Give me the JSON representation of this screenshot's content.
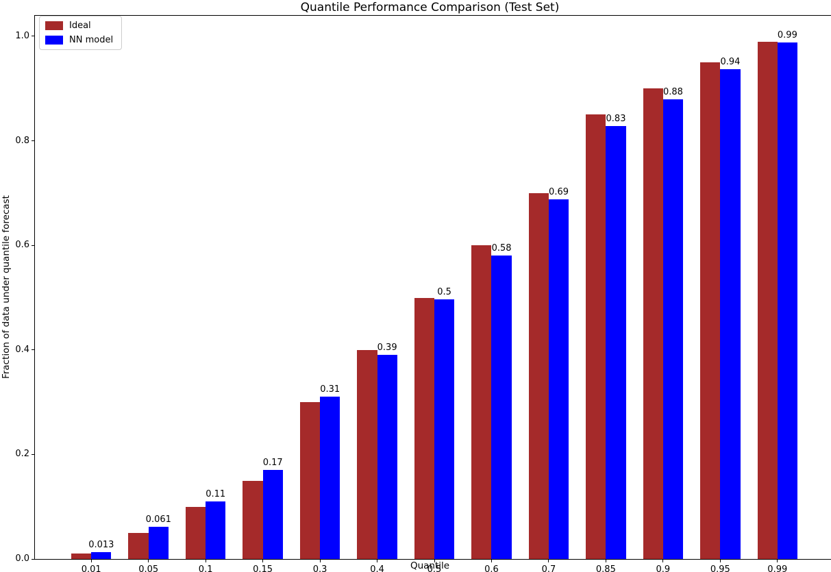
{
  "chart_data": {
    "type": "bar",
    "title": "Quantile Performance Comparison (Test Set)",
    "xlabel": "Quantile",
    "ylabel": "Fraction of data under quantile forecast",
    "categories": [
      "0.01",
      "0.05",
      "0.1",
      "0.15",
      "0.3",
      "0.4",
      "0.5",
      "0.6",
      "0.7",
      "0.85",
      "0.9",
      "0.95",
      "0.99"
    ],
    "series": [
      {
        "name": "Ideal",
        "color": "#a52a2a",
        "values": [
          0.01,
          0.05,
          0.1,
          0.15,
          0.3,
          0.4,
          0.5,
          0.6,
          0.7,
          0.85,
          0.9,
          0.95,
          0.99
        ]
      },
      {
        "name": "NN model",
        "color": "#0000ff",
        "values": [
          0.013,
          0.061,
          0.11,
          0.17,
          0.31,
          0.39,
          0.497,
          0.58,
          0.688,
          0.828,
          0.88,
          0.937,
          0.988
        ],
        "bar_labels": [
          "0.013",
          "0.061",
          "0.11",
          "0.17",
          "0.31",
          "0.39",
          "0.5",
          "0.58",
          "0.69",
          "0.83",
          "0.88",
          "0.94",
          "0.99"
        ]
      }
    ],
    "ytick_labels": [
      "0.0",
      "0.2",
      "0.4",
      "0.6",
      "0.8",
      "1.0"
    ],
    "ytick_values": [
      0.0,
      0.2,
      0.4,
      0.6,
      0.8,
      1.0
    ],
    "ylim": [
      0,
      1.0393
    ],
    "legend_position": "upper-left",
    "grid": false,
    "background_color": "#ffffff",
    "text_color": "#000000"
  }
}
